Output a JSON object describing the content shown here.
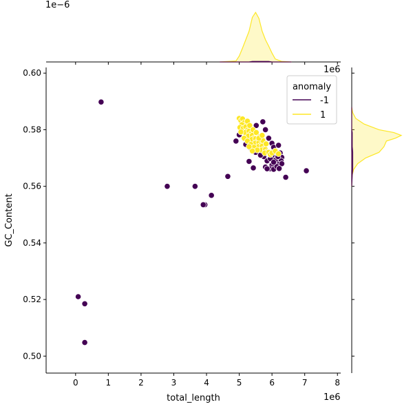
{
  "chart_data": {
    "type": "scatter",
    "title": "",
    "xlabel": "total_length",
    "ylabel": "GC_Content",
    "x_offset_label": "1e6",
    "y_offset_label": "",
    "top_marginal_offset_label": "1e−6",
    "right_marginal_offset_label": "1e6",
    "xlim": [
      -0.9,
      8.1
    ],
    "ylim": [
      0.494,
      0.602
    ],
    "x_ticks": [
      0,
      1,
      2,
      3,
      4,
      5,
      6,
      7,
      8
    ],
    "x_tick_labels": [
      "0",
      "1",
      "2",
      "3",
      "4",
      "5",
      "6",
      "7",
      "8"
    ],
    "y_ticks": [
      0.5,
      0.52,
      0.54,
      0.56,
      0.58,
      0.6
    ],
    "y_tick_labels": [
      "0.50",
      "0.52",
      "0.54",
      "0.56",
      "0.58",
      "0.60"
    ],
    "grid": false,
    "legend": {
      "title": "anomaly",
      "placement": "top-right",
      "entries": [
        {
          "label": "-1",
          "color": "#440154"
        },
        {
          "label": "1",
          "color": "#fde725"
        }
      ]
    },
    "series": [
      {
        "name": "-1",
        "color": "#440154",
        "points": [
          [
            0.78,
            0.5898
          ],
          [
            2.8,
            0.56
          ],
          [
            3.65,
            0.56
          ],
          [
            3.95,
            0.5535
          ],
          [
            3.9,
            0.5535
          ],
          [
            4.15,
            0.5568
          ],
          [
            4.65,
            0.5635
          ],
          [
            0.08,
            0.521
          ],
          [
            0.28,
            0.5185
          ],
          [
            0.28,
            0.5048
          ],
          [
            7.05,
            0.5655
          ],
          [
            6.42,
            0.5632
          ],
          [
            5.43,
            0.5665
          ],
          [
            5.3,
            0.5688
          ],
          [
            4.9,
            0.576
          ],
          [
            5.0,
            0.5782
          ],
          [
            5.2,
            0.5748
          ],
          [
            5.52,
            0.5815
          ],
          [
            5.72,
            0.5828
          ],
          [
            5.8,
            0.58
          ],
          [
            5.9,
            0.577
          ],
          [
            6.0,
            0.5752
          ],
          [
            6.05,
            0.5738
          ],
          [
            6.2,
            0.5745
          ],
          [
            6.25,
            0.5718
          ],
          [
            6.3,
            0.5702
          ],
          [
            6.28,
            0.569
          ],
          [
            6.2,
            0.5678
          ],
          [
            6.1,
            0.5692
          ],
          [
            6.0,
            0.5675
          ],
          [
            5.85,
            0.569
          ],
          [
            5.75,
            0.5705
          ],
          [
            5.8,
            0.5668
          ],
          [
            5.95,
            0.5662
          ],
          [
            6.05,
            0.566
          ],
          [
            6.15,
            0.567
          ],
          [
            6.3,
            0.568
          ],
          [
            5.9,
            0.572
          ],
          [
            6.1,
            0.5722
          ],
          [
            6.0,
            0.5708
          ],
          [
            5.65,
            0.571
          ],
          [
            5.55,
            0.573
          ],
          [
            5.35,
            0.5735
          ],
          [
            5.7,
            0.5742
          ],
          [
            5.5,
            0.572
          ],
          [
            6.18,
            0.5705
          ],
          [
            5.95,
            0.5698
          ],
          [
            6.22,
            0.5663
          ],
          [
            5.85,
            0.5662
          ],
          [
            6.05,
            0.5685
          ]
        ]
      },
      {
        "name": "1",
        "color": "#fde725",
        "points": [
          [
            5.0,
            0.584
          ],
          [
            5.05,
            0.5832
          ],
          [
            5.1,
            0.5838
          ],
          [
            5.15,
            0.5825
          ],
          [
            5.08,
            0.5818
          ],
          [
            5.02,
            0.5808
          ],
          [
            5.12,
            0.5805
          ],
          [
            5.2,
            0.581
          ],
          [
            5.25,
            0.5798
          ],
          [
            5.18,
            0.579
          ],
          [
            5.3,
            0.5795
          ],
          [
            5.35,
            0.5785
          ],
          [
            5.28,
            0.5778
          ],
          [
            5.4,
            0.578
          ],
          [
            5.45,
            0.577
          ],
          [
            5.38,
            0.5765
          ],
          [
            5.5,
            0.5768
          ],
          [
            5.55,
            0.5758
          ],
          [
            5.48,
            0.5752
          ],
          [
            5.6,
            0.5755
          ],
          [
            5.65,
            0.5745
          ],
          [
            5.58,
            0.574
          ],
          [
            5.7,
            0.5742
          ],
          [
            5.75,
            0.5732
          ],
          [
            5.68,
            0.5728
          ],
          [
            5.8,
            0.573
          ],
          [
            5.85,
            0.5722
          ],
          [
            5.78,
            0.5718
          ],
          [
            5.9,
            0.572
          ],
          [
            5.95,
            0.5712
          ],
          [
            6.0,
            0.5718
          ],
          [
            6.1,
            0.5725
          ],
          [
            6.2,
            0.5715
          ],
          [
            5.25,
            0.583
          ],
          [
            5.32,
            0.5815
          ],
          [
            5.42,
            0.58
          ],
          [
            5.52,
            0.579
          ],
          [
            5.62,
            0.5775
          ],
          [
            5.72,
            0.5762
          ],
          [
            5.82,
            0.575
          ],
          [
            5.15,
            0.577
          ],
          [
            5.25,
            0.576
          ],
          [
            5.35,
            0.5748
          ],
          [
            5.45,
            0.5738
          ],
          [
            5.55,
            0.5728
          ],
          [
            5.4,
            0.5725
          ],
          [
            5.3,
            0.574
          ],
          [
            5.05,
            0.5792
          ],
          [
            5.6,
            0.577
          ],
          [
            5.7,
            0.578
          ]
        ]
      }
    ],
    "top_marginal": {
      "type": "area",
      "x": [
        4.4,
        4.9,
        5.0,
        5.1,
        5.2,
        5.3,
        5.4,
        5.5,
        5.6,
        5.7,
        5.8,
        5.9,
        6.0,
        6.1,
        6.3,
        6.6
      ],
      "density_1": [
        0.0,
        0.02,
        0.12,
        0.28,
        0.45,
        0.62,
        0.9,
        1.0,
        0.88,
        0.62,
        0.45,
        0.32,
        0.18,
        0.06,
        0.01,
        0.0
      ],
      "density_-1": [
        0.0,
        0.0,
        0.0,
        0.0,
        0.0,
        0.0,
        0.01,
        0.01,
        0.01,
        0.01,
        0.01,
        0.01,
        0.0,
        0.0,
        0.0,
        0.0
      ]
    },
    "right_marginal": {
      "type": "area",
      "y": [
        0.56,
        0.564,
        0.566,
        0.568,
        0.57,
        0.572,
        0.574,
        0.576,
        0.577,
        0.578,
        0.579,
        0.58,
        0.582,
        0.584,
        0.586,
        0.588
      ],
      "density_1": [
        0.0,
        0.01,
        0.04,
        0.12,
        0.28,
        0.55,
        0.65,
        0.7,
        0.88,
        1.0,
        0.85,
        0.55,
        0.25,
        0.08,
        0.02,
        0.0
      ],
      "density_-1": [
        0.0,
        0.01,
        0.02,
        0.02,
        0.02,
        0.02,
        0.01,
        0.01,
        0.01,
        0.01,
        0.01,
        0.0,
        0.0,
        0.0,
        0.0,
        0.0
      ]
    }
  }
}
